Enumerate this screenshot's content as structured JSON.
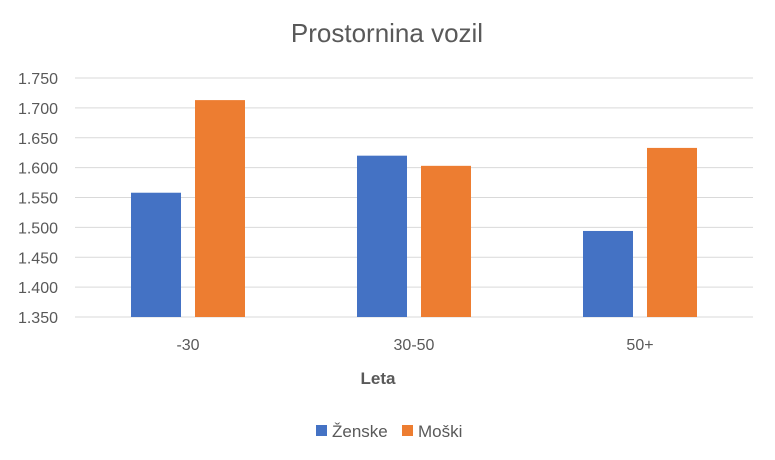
{
  "chart_data": {
    "type": "bar",
    "title": "Prostornina vozil",
    "xlabel": "Leta",
    "ylabel": "",
    "categories": [
      "-30",
      "30-50",
      "50+"
    ],
    "series": [
      {
        "name": "Ženske",
        "color": "#4472C4",
        "values": [
          1558,
          1620,
          1494
        ]
      },
      {
        "name": "Moški",
        "color": "#ED7D31",
        "values": [
          1713,
          1603,
          1633
        ]
      }
    ],
    "ylim": [
      1350,
      1750
    ],
    "yticks": [
      "1.350",
      "1.400",
      "1.450",
      "1.500",
      "1.550",
      "1.600",
      "1.650",
      "1.700",
      "1.750"
    ],
    "grid": true,
    "legend_position": "bottom"
  }
}
